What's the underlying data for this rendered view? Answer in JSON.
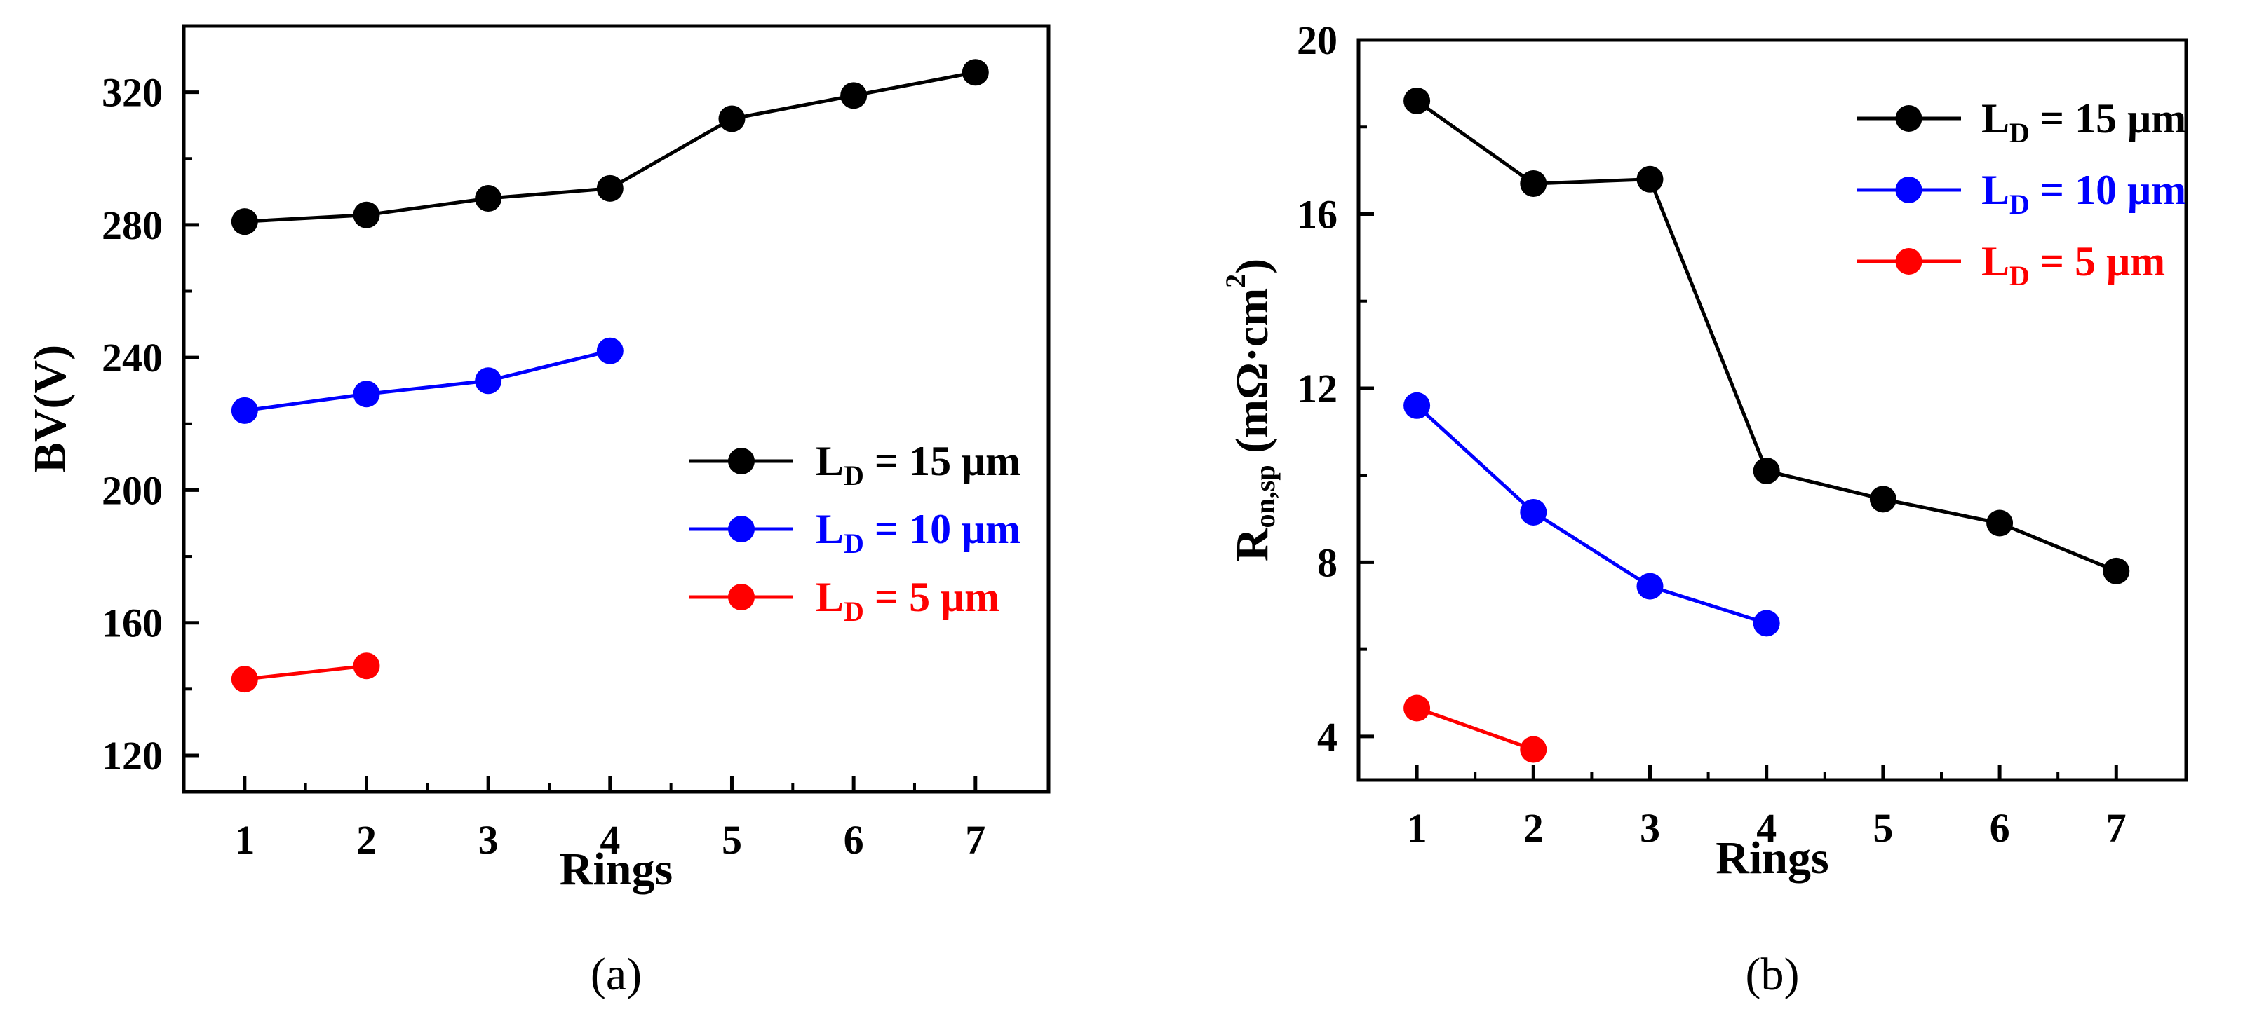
{
  "chart_data": [
    {
      "type": "line",
      "panel_label": "(a)",
      "xlabel": "Rings",
      "ylabel": "BV(V)",
      "x_ticks": [
        1,
        2,
        3,
        4,
        5,
        6,
        7
      ],
      "y_ticks": [
        120,
        160,
        200,
        240,
        280,
        320
      ],
      "xlim": [
        0.5,
        7.6
      ],
      "ylim": [
        109,
        340
      ],
      "legend_position": "right",
      "series": [
        {
          "name": "15",
          "legend": {
            "prefix": "L",
            "sub": "D",
            "suffix": " = 15 μm"
          },
          "color": "#000000",
          "x": [
            1,
            2,
            3,
            4,
            5,
            6,
            7
          ],
          "y": [
            281,
            283,
            288,
            291,
            312,
            319,
            326
          ]
        },
        {
          "name": "10",
          "legend": {
            "prefix": "L",
            "sub": "D",
            "suffix": " = 10 μm"
          },
          "color": "#0000ff",
          "x": [
            1,
            2,
            3,
            4
          ],
          "y": [
            224,
            229,
            233,
            242
          ]
        },
        {
          "name": "5",
          "legend": {
            "prefix": "L",
            "sub": "D",
            "suffix": " = 5 μm"
          },
          "color": "#ff0000",
          "x": [
            1,
            2
          ],
          "y": [
            143,
            147
          ]
        }
      ]
    },
    {
      "type": "line",
      "panel_label": "(b)",
      "xlabel": "Rings",
      "ylabel": {
        "r": "R",
        "sub": "on,sp",
        "rest": " (mΩ·cm",
        "sup": "2",
        "close": ")"
      },
      "x_ticks": [
        1,
        2,
        3,
        4,
        5,
        6,
        7
      ],
      "y_ticks": [
        4,
        8,
        12,
        16,
        20
      ],
      "xlim": [
        0.5,
        7.6
      ],
      "ylim": [
        3,
        20
      ],
      "legend_position": "top-right",
      "series": [
        {
          "name": "15",
          "legend": {
            "prefix": "L",
            "sub": "D",
            "suffix": " = 15 μm"
          },
          "color": "#000000",
          "x": [
            1,
            2,
            3,
            4,
            5,
            6,
            7
          ],
          "y": [
            18.6,
            16.7,
            16.8,
            10.1,
            9.45,
            8.9,
            7.8
          ]
        },
        {
          "name": "10",
          "legend": {
            "prefix": "L",
            "sub": "D",
            "suffix": " = 10 μm"
          },
          "color": "#0000ff",
          "x": [
            1,
            2,
            3,
            4
          ],
          "y": [
            11.6,
            9.15,
            7.45,
            6.6
          ]
        },
        {
          "name": "5",
          "legend": {
            "prefix": "L",
            "sub": "D",
            "suffix": " = 5 μm"
          },
          "color": "#ff0000",
          "x": [
            1,
            2
          ],
          "y": [
            4.65,
            3.7
          ]
        }
      ]
    }
  ]
}
